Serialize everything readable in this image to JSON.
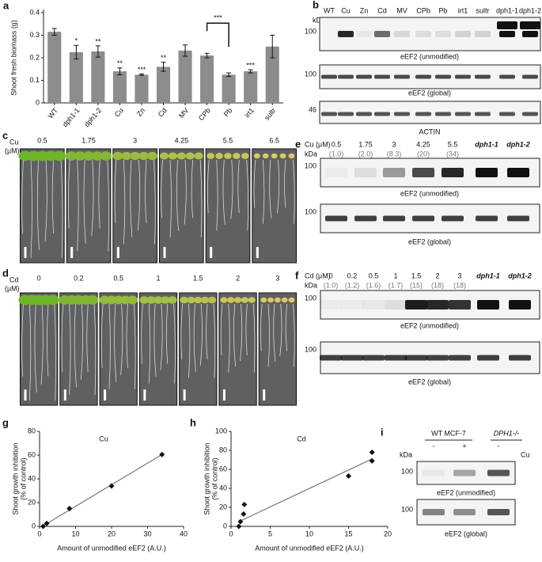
{
  "chart_data": [
    {
      "type": "bar",
      "panel": "a",
      "y_label": "Shoot fresh biomass (g)",
      "categories": [
        "WT",
        "dph1-1",
        "dph1-2",
        "Cu",
        "Zn",
        "Cd",
        "MV",
        "CPb",
        "Pb",
        "irt1",
        "sultr"
      ],
      "values": [
        0.315,
        0.225,
        0.228,
        0.14,
        0.125,
        0.16,
        0.232,
        0.21,
        0.125,
        0.14,
        0.25
      ],
      "errors": [
        0.015,
        0.03,
        0.025,
        0.015,
        0.003,
        0.02,
        0.025,
        0.01,
        0.008,
        0.007,
        0.05
      ],
      "significance": [
        null,
        "*",
        "**",
        "**",
        "***",
        "**",
        null,
        null,
        null,
        "***",
        null
      ],
      "bracket": {
        "from": "CPb",
        "to": "Pb",
        "label": "***"
      },
      "color": "#8c8c8c",
      "ylim": [
        0,
        0.4
      ],
      "yticks": [
        0,
        0.1,
        0.2,
        0.3,
        0.4
      ]
    },
    {
      "type": "scatter",
      "panel": "g",
      "title": "Cu",
      "x_label": "Amount of unmodified eEF2 (A.U.)",
      "y_label": [
        "Shoot growth inhibition",
        "(% of control)"
      ],
      "x": [
        1,
        2,
        8.3,
        20,
        34
      ],
      "y": [
        0,
        2.5,
        15,
        34,
        60.5
      ],
      "trend_x": [
        1,
        34
      ],
      "trend_y": [
        0.5,
        60.5
      ],
      "color": "#111111",
      "xlim": [
        0,
        40
      ],
      "xticks": [
        0,
        10,
        20,
        30,
        40
      ],
      "ylim": [
        0,
        80
      ],
      "yticks": [
        0,
        20,
        40,
        60,
        80
      ]
    },
    {
      "type": "scatter",
      "panel": "h",
      "title": "Cd",
      "x_label": "Amount of unmodified eEF2 (A.U.)",
      "y_label": [
        "Shoot growth inhibition",
        "(% of control)"
      ],
      "x": [
        1,
        1.2,
        1.6,
        1.7,
        15,
        18,
        18
      ],
      "y": [
        0,
        5,
        13,
        23,
        53,
        69,
        78
      ],
      "trend_x": [
        1,
        18
      ],
      "trend_y": [
        5,
        71
      ],
      "color": "#111111",
      "xlim": [
        0,
        20
      ],
      "xticks": [
        0,
        5,
        10,
        15,
        20
      ],
      "ylim": [
        0,
        100
      ],
      "yticks": [
        0,
        20,
        40,
        60,
        80,
        100
      ]
    }
  ],
  "blot_b": {
    "panel": "b",
    "kda": "kDa",
    "lanes": [
      "WT",
      "Cu",
      "Zn",
      "Cd",
      "MV",
      "CPb",
      "Pb",
      "irt1",
      "sultr",
      "dph1-1",
      "dph1-2"
    ],
    "blots": [
      {
        "marker": "100",
        "label": "eEF2 (unmodified)"
      },
      {
        "marker": "100",
        "label": "eEF2 (global)"
      },
      {
        "marker": "46",
        "label": "ACTIN"
      }
    ]
  },
  "photos_c": {
    "panel": "c",
    "metal": "Cu",
    "unit": "(µM)",
    "concentrations": [
      "0.5",
      "1.75",
      "3",
      "4.25",
      "5.5",
      "6.5"
    ]
  },
  "photos_d": {
    "panel": "d",
    "metal": "Cd",
    "unit": "(µM)",
    "concentrations": [
      "0",
      "0.2",
      "0.5",
      "1",
      "1.5",
      "2",
      "3"
    ]
  },
  "blot_e": {
    "panel": "e",
    "header": "Cu (µM)",
    "kda": "kDa",
    "lanes": [
      "0.5",
      "1.75",
      "3",
      "4.25",
      "5.5"
    ],
    "quant": [
      "(1.0)",
      "(2.0)",
      "(8.3)",
      "(20)",
      "(34)"
    ],
    "mutants": [
      "dph1-1",
      "dph1-2"
    ],
    "blots": [
      {
        "marker": "100",
        "label": "eEF2 (unmodified)"
      },
      {
        "marker": "100",
        "label": "eEF2 (global)"
      }
    ]
  },
  "blot_f": {
    "panel": "f",
    "header": "Cd (µM)",
    "kda": "kDa",
    "lanes": [
      "0",
      "0.2",
      "0.5",
      "1",
      "1.5",
      "2",
      "3"
    ],
    "quant": [
      "(1.0)",
      "(1.2)",
      "(1.6)",
      "(1.7)",
      "(15)",
      "(18)",
      "(18)"
    ],
    "mutants": [
      "dph1-1",
      "dph1-2"
    ],
    "blots": [
      {
        "marker": "100",
        "label": "eEF2 (unmodified)"
      },
      {
        "marker": "100",
        "label": "eEF2 (global)"
      }
    ]
  },
  "blot_i": {
    "panel": "i",
    "groups": [
      "WT MCF-7",
      "DPH1-/-"
    ],
    "lanes": [
      "-",
      "+",
      "-"
    ],
    "metal": "Cu",
    "kda": "kDa",
    "blots": [
      {
        "marker": "100",
        "label": "eEF2 (unmodified)"
      },
      {
        "marker": "100",
        "label": "eEF2 (global)"
      }
    ]
  }
}
